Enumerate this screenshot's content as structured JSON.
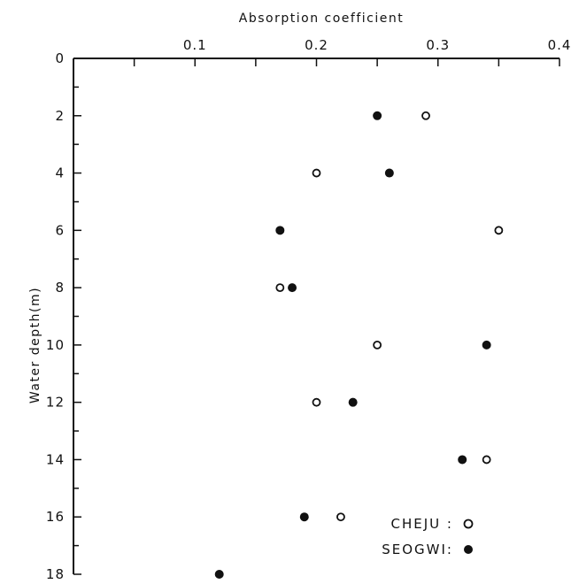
{
  "chart_data": {
    "type": "scatter",
    "title": "",
    "xlabel": "Absorption coefficient",
    "ylabel": "Water depth(m)",
    "xlim": [
      0,
      0.4
    ],
    "ylim": [
      0,
      18
    ],
    "x_axis_position": "top",
    "y_axis_inverted": true,
    "grid": false,
    "legend_position": "bottom-right",
    "x_ticks": [
      0.1,
      0.2,
      0.3,
      0.4
    ],
    "x_tick_labels": [
      "0.1",
      "0.2",
      "0.3",
      "0.4"
    ],
    "y_ticks": [
      0,
      2,
      4,
      6,
      8,
      10,
      12,
      14,
      16,
      18
    ],
    "y_tick_labels": [
      "0",
      "2",
      "4",
      "6",
      "8",
      "10",
      "12",
      "14",
      "16",
      "18"
    ],
    "series": [
      {
        "name": "CHEJU",
        "marker": "open-circle",
        "points": [
          {
            "x": 0.29,
            "y": 2
          },
          {
            "x": 0.2,
            "y": 4
          },
          {
            "x": 0.35,
            "y": 6
          },
          {
            "x": 0.17,
            "y": 8
          },
          {
            "x": 0.25,
            "y": 10
          },
          {
            "x": 0.2,
            "y": 12
          },
          {
            "x": 0.34,
            "y": 14
          },
          {
            "x": 0.22,
            "y": 16
          }
        ]
      },
      {
        "name": "SEOGWI",
        "marker": "filled-circle",
        "points": [
          {
            "x": 0.25,
            "y": 2
          },
          {
            "x": 0.26,
            "y": 4
          },
          {
            "x": 0.17,
            "y": 6
          },
          {
            "x": 0.18,
            "y": 8
          },
          {
            "x": 0.34,
            "y": 10
          },
          {
            "x": 0.23,
            "y": 12
          },
          {
            "x": 0.32,
            "y": 14
          },
          {
            "x": 0.19,
            "y": 16
          },
          {
            "x": 0.12,
            "y": 18
          }
        ]
      }
    ],
    "legend": [
      {
        "label": "CHEJU :",
        "marker": "open-circle"
      },
      {
        "label": "SEOGWI:",
        "marker": "filled-circle"
      }
    ],
    "colors": {
      "ink": "#111111",
      "background": "#ffffff"
    }
  }
}
